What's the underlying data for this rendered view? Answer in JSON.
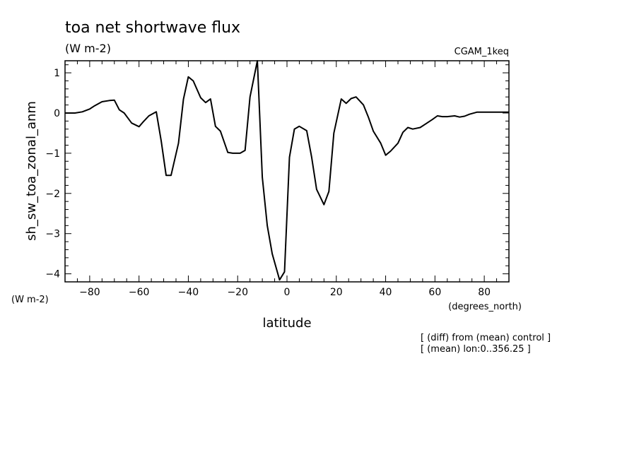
{
  "chart_data": {
    "type": "line",
    "title": "toa net shortwave flux",
    "title_units": "(W m-2)",
    "dataset_label": "CGAM_1keq",
    "ylabel": "sh_sw_toa_zonal_anm",
    "yunits": "(W m-2)",
    "xlabel": "latitude",
    "xunits": "(degrees_north)",
    "notes": [
      "[ (diff) from (mean) control ]",
      "[ (mean) lon:0..356.25 ]"
    ],
    "xlim": [
      -90,
      90
    ],
    "ylim": [
      -4.2,
      1.3
    ],
    "xticks": [
      -80,
      -60,
      -40,
      -20,
      0,
      20,
      40,
      60,
      80
    ],
    "xtick_labels": [
      "-80",
      "-60",
      "-40",
      "-20",
      "0",
      "20",
      "40",
      "60",
      "80"
    ],
    "yticks": [
      1,
      0,
      -1,
      -2,
      -3,
      -4
    ],
    "ytick_labels": [
      "1",
      "0",
      "-1",
      "-2",
      "-3",
      "-4"
    ],
    "grid": false,
    "series": [
      {
        "x": [
          -90,
          -86,
          -83,
          -80,
          -78,
          -75,
          -72,
          -70,
          -68,
          -66,
          -63,
          -60,
          -58,
          -56,
          -53,
          -51,
          -49,
          -47,
          -44,
          -42,
          -40,
          -38,
          -35,
          -33,
          -31,
          -29,
          -27,
          -24,
          -22,
          -19,
          -17,
          -15,
          -12,
          -10,
          -8,
          -6,
          -3,
          -1,
          1,
          3,
          5,
          8,
          10,
          12,
          15,
          17,
          19,
          22,
          24,
          26,
          28,
          31,
          33,
          35,
          38,
          40,
          42,
          45,
          47,
          49,
          51,
          54,
          56,
          59,
          61,
          63,
          65,
          68,
          70,
          72,
          74,
          77,
          79,
          81,
          84,
          86,
          88,
          90
        ],
        "y": [
          0.0,
          0.0,
          0.03,
          0.1,
          0.18,
          0.28,
          0.31,
          0.32,
          0.08,
          0.0,
          -0.25,
          -0.34,
          -0.2,
          -0.07,
          0.03,
          -0.7,
          -1.55,
          -1.55,
          -0.75,
          0.34,
          0.9,
          0.8,
          0.38,
          0.26,
          0.35,
          -0.33,
          -0.45,
          -0.98,
          -1.0,
          -1.0,
          -0.93,
          0.4,
          1.3,
          -1.6,
          -2.8,
          -3.5,
          -4.15,
          -3.95,
          -1.1,
          -0.4,
          -0.33,
          -0.44,
          -1.1,
          -1.9,
          -2.28,
          -1.95,
          -0.5,
          0.35,
          0.24,
          0.36,
          0.4,
          0.2,
          -0.1,
          -0.45,
          -0.75,
          -1.05,
          -0.95,
          -0.75,
          -0.48,
          -0.36,
          -0.4,
          -0.36,
          -0.28,
          -0.16,
          -0.07,
          -0.09,
          -0.09,
          -0.07,
          -0.1,
          -0.08,
          -0.03,
          0.02,
          0.02,
          0.02,
          0.02,
          0.02,
          0.02,
          0.02
        ]
      }
    ]
  }
}
